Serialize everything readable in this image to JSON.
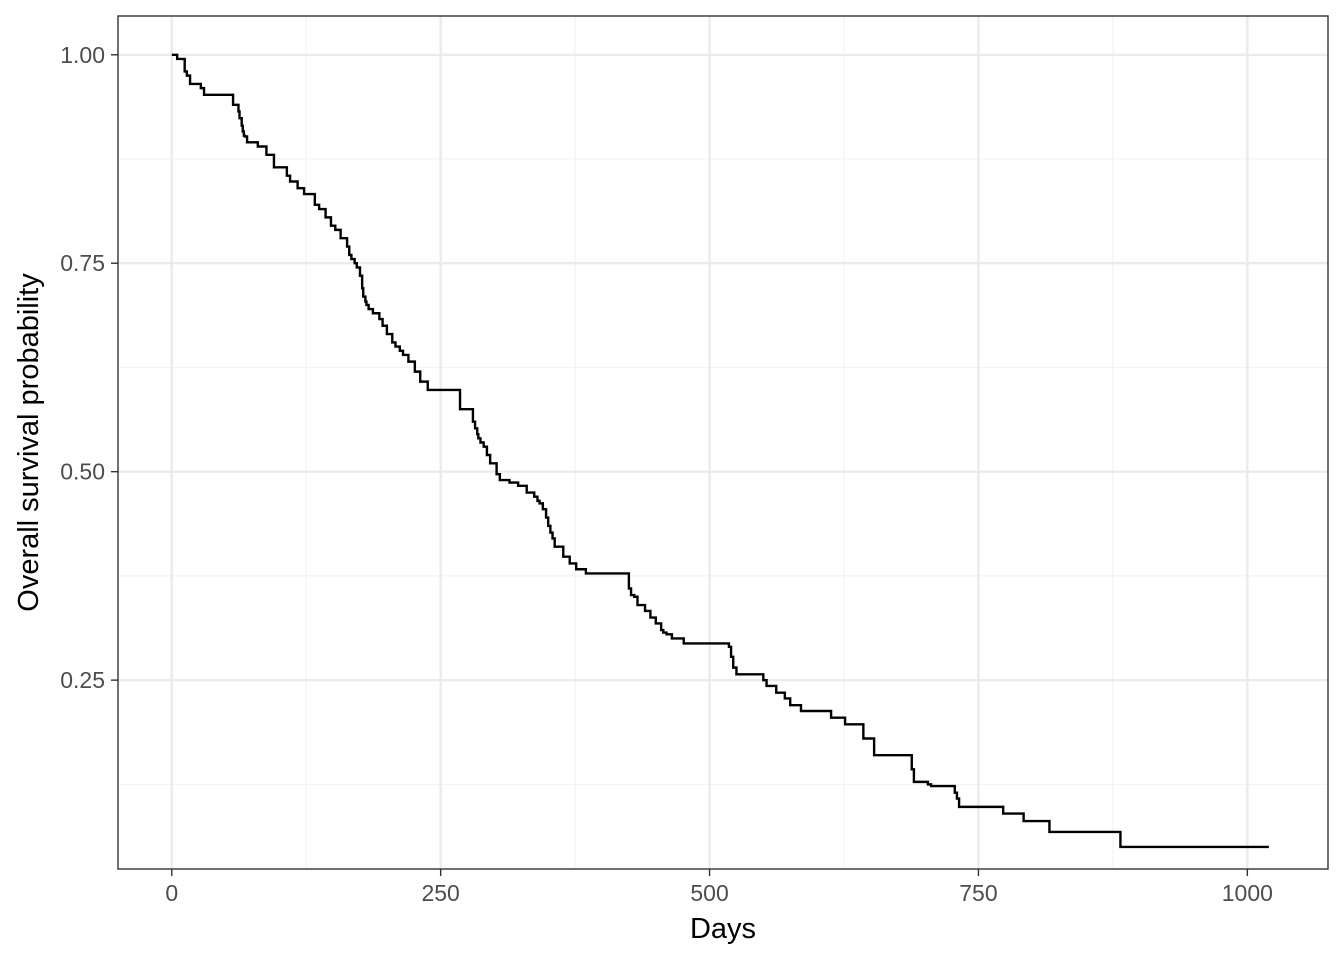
{
  "chart_data": {
    "type": "line",
    "step": true,
    "title": "",
    "xlabel": "Days",
    "ylabel": "Overall survival probability",
    "xlim": [
      -50,
      1075
    ],
    "ylim": [
      0.0235,
      1.0465
    ],
    "x_ticks": [
      0,
      250,
      500,
      750,
      1000
    ],
    "x_tick_labels": [
      "0",
      "250",
      "500",
      "750",
      "1000"
    ],
    "y_ticks": [
      0.25,
      0.5,
      0.75,
      1.0
    ],
    "y_tick_labels": [
      "0.25",
      "0.50",
      "0.75",
      "1.00"
    ],
    "grid": true,
    "legend": "none",
    "colors": {
      "line": "#000000",
      "grid_major": "#ebebeb",
      "grid_minor": "#f3f3f3",
      "panel_border": "#333333",
      "tick_text": "#4d4d4d"
    },
    "series": [
      {
        "x": [
          0,
          5,
          10,
          12,
          14,
          17,
          27,
          30,
          57,
          62,
          63,
          65,
          66,
          67,
          68,
          70,
          80,
          88,
          95,
          107,
          110,
          117,
          123,
          133,
          137,
          143,
          148,
          152,
          157,
          163,
          165,
          167,
          170,
          172,
          175,
          177,
          178,
          180,
          181,
          183,
          187,
          193,
          196,
          200,
          205,
          208,
          212,
          215,
          220,
          226,
          231,
          238,
          245,
          250,
          268,
          280,
          282,
          284,
          285,
          287,
          290,
          293,
          296,
          302,
          305,
          314,
          322,
          330,
          337,
          340,
          342,
          345,
          348,
          350,
          352,
          354,
          356,
          364,
          370,
          376,
          385,
          390,
          395,
          425,
          427,
          430,
          433,
          440,
          445,
          450,
          455,
          457,
          460,
          465,
          476,
          490,
          518,
          520,
          522,
          525,
          534,
          550,
          553,
          562,
          570,
          575,
          585,
          607,
          613,
          626,
          643,
          653,
          663,
          688,
          690,
          703,
          706,
          707,
          728,
          730,
          732,
          735,
          765,
          770,
          773,
          792,
          816,
          882,
          1020
        ],
        "y": [
          1.0,
          0.995,
          0.995,
          0.98,
          0.975,
          0.965,
          0.96,
          0.952,
          0.94,
          0.932,
          0.924,
          0.915,
          0.908,
          0.903,
          0.902,
          0.895,
          0.89,
          0.88,
          0.865,
          0.855,
          0.848,
          0.84,
          0.833,
          0.82,
          0.815,
          0.805,
          0.795,
          0.79,
          0.78,
          0.77,
          0.76,
          0.755,
          0.75,
          0.745,
          0.735,
          0.72,
          0.71,
          0.704,
          0.7,
          0.695,
          0.69,
          0.683,
          0.675,
          0.665,
          0.655,
          0.65,
          0.645,
          0.64,
          0.632,
          0.62,
          0.608,
          0.598,
          0.598,
          0.598,
          0.575,
          0.56,
          0.552,
          0.545,
          0.54,
          0.535,
          0.53,
          0.52,
          0.51,
          0.497,
          0.49,
          0.487,
          0.483,
          0.475,
          0.47,
          0.465,
          0.462,
          0.455,
          0.445,
          0.435,
          0.427,
          0.42,
          0.41,
          0.398,
          0.39,
          0.383,
          0.378,
          0.378,
          0.378,
          0.36,
          0.352,
          0.35,
          0.34,
          0.333,
          0.325,
          0.318,
          0.31,
          0.307,
          0.305,
          0.3,
          0.294,
          0.294,
          0.29,
          0.278,
          0.265,
          0.257,
          0.257,
          0.25,
          0.243,
          0.235,
          0.228,
          0.22,
          0.213,
          0.213,
          0.205,
          0.197,
          0.18,
          0.16,
          0.16,
          0.143,
          0.128,
          0.125,
          0.123,
          0.123,
          0.115,
          0.108,
          0.098,
          0.098,
          0.098,
          0.098,
          0.09,
          0.081,
          0.068,
          0.05,
          0.05
        ]
      }
    ]
  }
}
